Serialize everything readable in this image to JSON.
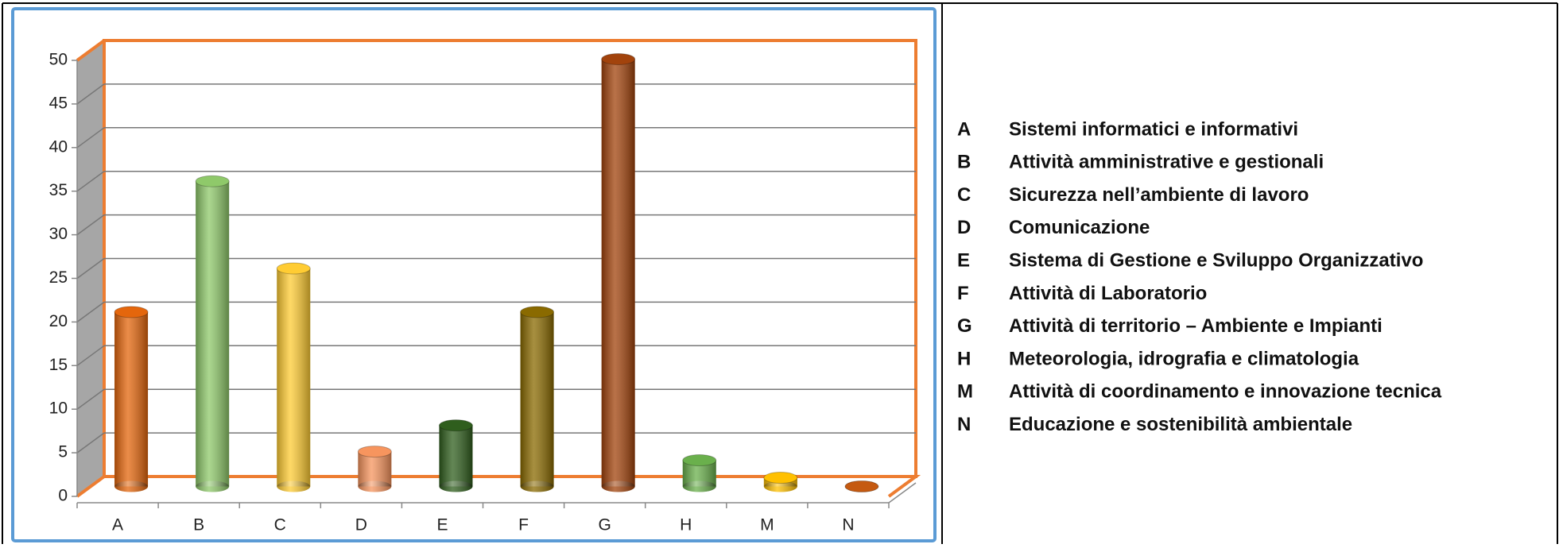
{
  "chart_data": {
    "type": "bar",
    "categories": [
      "A",
      "B",
      "C",
      "D",
      "E",
      "F",
      "G",
      "H",
      "M",
      "N"
    ],
    "values": [
      20,
      35,
      25,
      4,
      7,
      20,
      49,
      3,
      1,
      0
    ],
    "colors": [
      "#e4660c",
      "#8fc96a",
      "#ffcc33",
      "#f7955e",
      "#2f5e1d",
      "#8a6a00",
      "#a2430c",
      "#6ab04c",
      "#ffc000",
      "#c55a11"
    ],
    "ylim": [
      0,
      50
    ],
    "yticks": [
      0,
      5,
      10,
      15,
      20,
      25,
      30,
      35,
      40,
      45,
      50
    ],
    "grid": true,
    "legend": [
      "Sistemi informatici e informativi",
      "Attività amministrative e gestionali",
      "Sicurezza nell’ambiente di lavoro",
      "Comunicazione",
      "Sistema di Gestione e Sviluppo Organizzativo",
      "Attività di Laboratorio",
      "Attività di territorio – Ambiente e Impianti",
      "Meteorologia, idrografia e climatologia",
      "Attività di coordinamento e innovazione tecnica",
      "Educazione e sostenibilità ambientale"
    ]
  }
}
